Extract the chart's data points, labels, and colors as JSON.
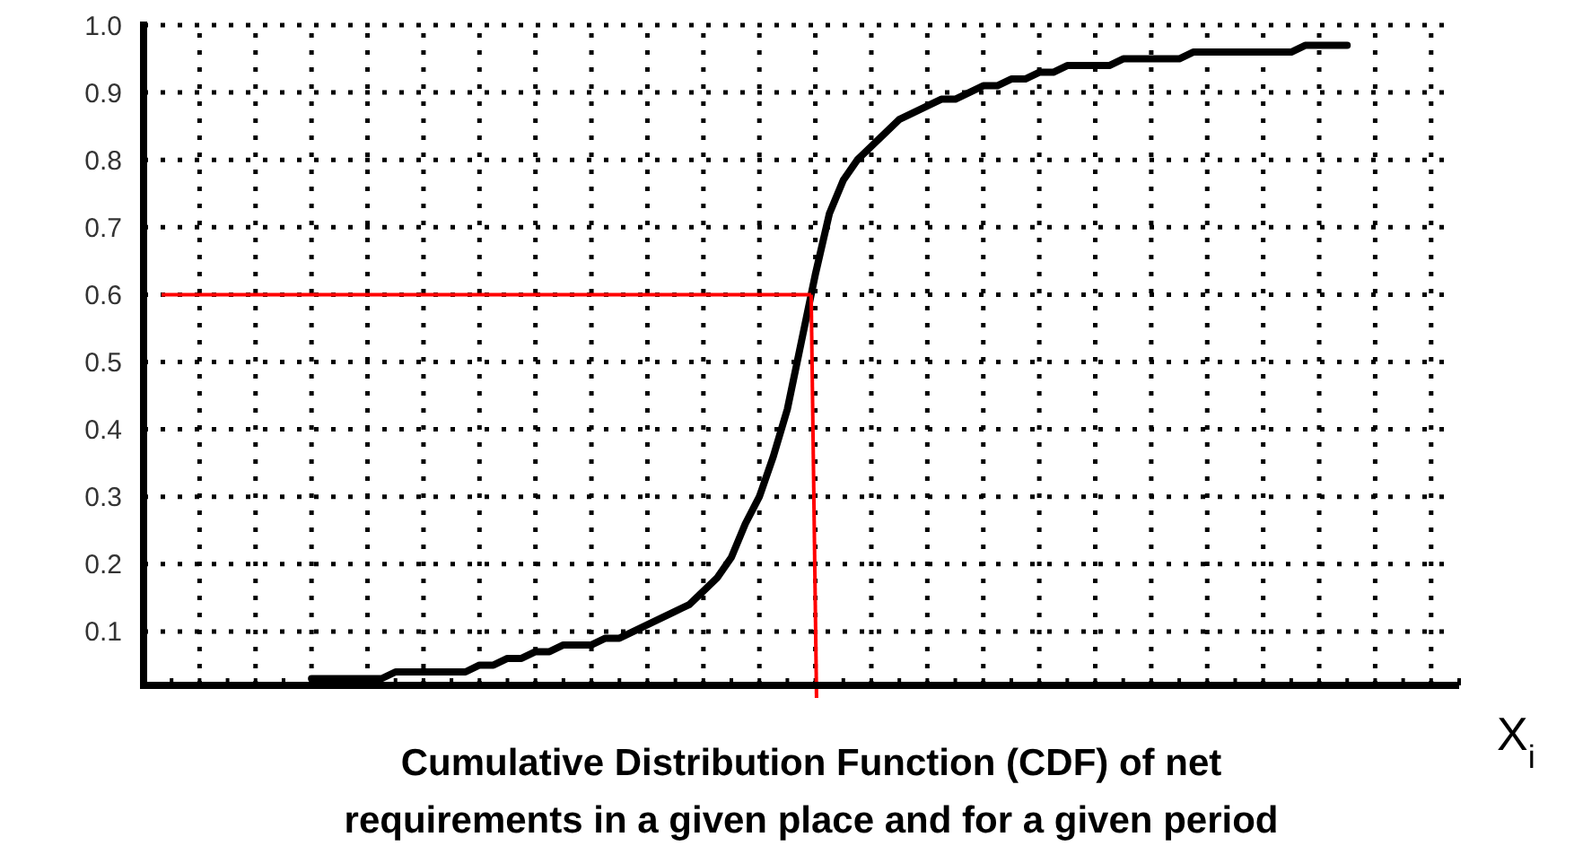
{
  "chart_data": {
    "type": "line",
    "title": "Cumulative Distribution Function (CDF) of net requirements in a given place and for a given period",
    "xlabel": "X$_{i}$",
    "categories": [
      null,
      null,
      null,
      null,
      null,
      null,
      null,
      null,
      null,
      null,
      null,
      null,
      null,
      null,
      null,
      null,
      null,
      null,
      null,
      null,
      null,
      null,
      null,
      null,
      null,
      null,
      null,
      null,
      null,
      null,
      null,
      null,
      null,
      null,
      null,
      null,
      null,
      null,
      null,
      null,
      null,
      null,
      null,
      null,
      null,
      null,
      null,
      null,
      null,
      null,
      null,
      null,
      null,
      null,
      null,
      null,
      null,
      null,
      null,
      null,
      null,
      null,
      null,
      null,
      null,
      null,
      null,
      null,
      null,
      null,
      null,
      null,
      null,
      null,
      null
    ],
    "series": [
      {
        "color": "#000000",
        "values": [
          0.03,
          0.03,
          0.03,
          0.03,
          0.03,
          0.03,
          0.04,
          0.04,
          0.04,
          0.04,
          0.04,
          0.04,
          0.05,
          0.05,
          0.06,
          0.06,
          0.07,
          0.07,
          0.08,
          0.08,
          0.08,
          0.09,
          0.09,
          0.1,
          0.11,
          0.12,
          0.13,
          0.14,
          0.16,
          0.18,
          0.21,
          0.26,
          0.3,
          0.36,
          0.43,
          0.53,
          0.63,
          0.72,
          0.77,
          0.8,
          0.82,
          0.84,
          0.86,
          0.87,
          0.88,
          0.89,
          0.89,
          0.9,
          0.91,
          0.91,
          0.92,
          0.92,
          0.93,
          0.93,
          0.94,
          0.94,
          0.94,
          0.94,
          0.95,
          0.95,
          0.95,
          0.95,
          0.95,
          0.96,
          0.96,
          0.96,
          0.96,
          0.96,
          0.96,
          0.96,
          0.96,
          0.97,
          0.97,
          0.97,
          0.97
        ]
      }
    ],
    "ylim": [
      0.02,
      1.0
    ],
    "yticks": [
      0.1,
      0.2,
      0.3,
      0.4,
      0.5,
      0.6,
      0.7,
      0.8,
      0.9,
      {
        "value": 1,
        "label": "1.0"
      }
    ],
    "ref_lines": [
      {
        "axis": "y",
        "value": 0.6,
        "color": "#ff0000"
      }
    ],
    "grid": true,
    "line_style": "solid",
    "marker": "none"
  }
}
